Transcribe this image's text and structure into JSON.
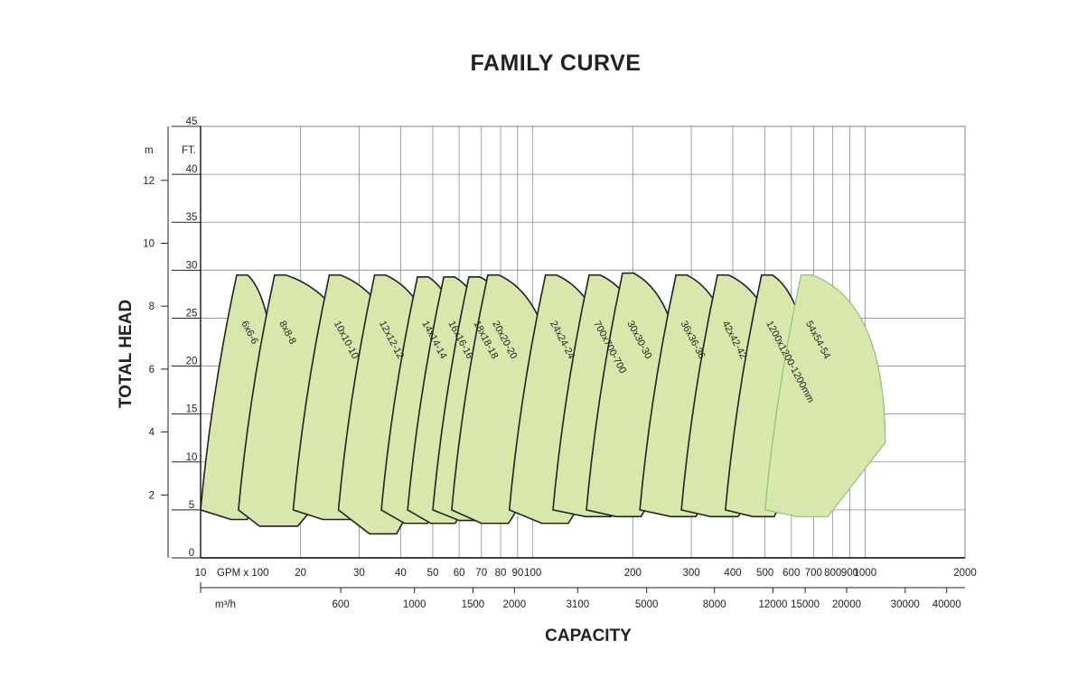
{
  "chart_data": {
    "type": "area",
    "title": "FAMILY CURVE",
    "xlabel": "CAPACITY",
    "ylabel": "TOTAL HEAD",
    "x_scale": "log",
    "xlim": [
      10,
      2000
    ],
    "ylim": [
      0,
      45
    ],
    "grid": true,
    "x_primary_unit": "GPM x 100",
    "x_primary_ticks": [
      10,
      20,
      30,
      40,
      50,
      60,
      70,
      80,
      90,
      100,
      200,
      300,
      400,
      500,
      600,
      700,
      800,
      900,
      1000,
      2000
    ],
    "x_secondary_unit": "m³/h",
    "x_secondary_ticks": [
      600,
      1000,
      1500,
      2000,
      3100,
      5000,
      8000,
      12000,
      15000,
      20000,
      30000,
      40000
    ],
    "y_primary_unit": "FT.",
    "y_primary_ticks": [
      0,
      5,
      10,
      15,
      20,
      25,
      30,
      35,
      40,
      45
    ],
    "y_secondary_unit": "m",
    "y_secondary_ticks": [
      2,
      4,
      6,
      8,
      10,
      12
    ],
    "series": [
      {
        "name": "6x6-6",
        "q_min": 10,
        "q_bep": 16,
        "q_max": 17,
        "h_min": 4,
        "h_max": 29.5
      },
      {
        "name": "8x8-8",
        "q_min": 13,
        "q_bep": 18,
        "q_max": 32,
        "h_min": 3.3,
        "h_max": 29.5
      },
      {
        "name": "10x10-10",
        "q_min": 19,
        "q_bep": 30,
        "q_max": 43,
        "h_min": 4,
        "h_max": 29.5
      },
      {
        "name": "12x12-12",
        "q_min": 26,
        "q_bep": 42,
        "q_max": 55,
        "h_min": 2.5,
        "h_max": 29.5
      },
      {
        "name": "14x14-14",
        "q_min": 35,
        "q_bep": 50,
        "q_max": 65,
        "h_min": 3.6,
        "h_max": 29.3
      },
      {
        "name": "16x16-16",
        "q_min": 42,
        "q_bep": 60,
        "q_max": 80,
        "h_min": 3.6,
        "h_max": 29.3
      },
      {
        "name": "18x18-18",
        "q_min": 50,
        "q_bep": 75,
        "q_max": 100,
        "h_min": 3.9,
        "h_max": 29.3
      },
      {
        "name": "20x20-20",
        "q_min": 57,
        "q_bep": 90,
        "q_max": 120,
        "h_min": 3.6,
        "h_max": 29.5
      },
      {
        "name": "24x24-24",
        "q_min": 85,
        "q_bep": 140,
        "q_max": 180,
        "h_min": 3.6,
        "h_max": 29.5
      },
      {
        "name": "700x700-700",
        "q_min": 115,
        "q_bep": 190,
        "q_max": 240,
        "h_min": 4.3,
        "h_max": 29.5
      },
      {
        "name": "30x30-30",
        "q_min": 145,
        "q_bep": 230,
        "q_max": 290,
        "h_min": 4.3,
        "h_max": 29.7
      },
      {
        "name": "36x36-36",
        "q_min": 210,
        "q_bep": 340,
        "q_max": 425,
        "h_min": 4.3,
        "h_max": 29.5
      },
      {
        "name": "42x42-42",
        "q_min": 280,
        "q_bep": 440,
        "q_max": 590,
        "h_min": 4.3,
        "h_max": 29.5
      },
      {
        "name": "1200x1200-1200mm",
        "q_min": 380,
        "q_bep": 580,
        "q_max": 700,
        "h_min": 4.3,
        "h_max": 29.5
      },
      {
        "name": "54x54-54",
        "q_min": 500,
        "q_bep": 820,
        "q_max": 1150,
        "h_min": 4.3,
        "h_max": 29.5
      }
    ]
  }
}
